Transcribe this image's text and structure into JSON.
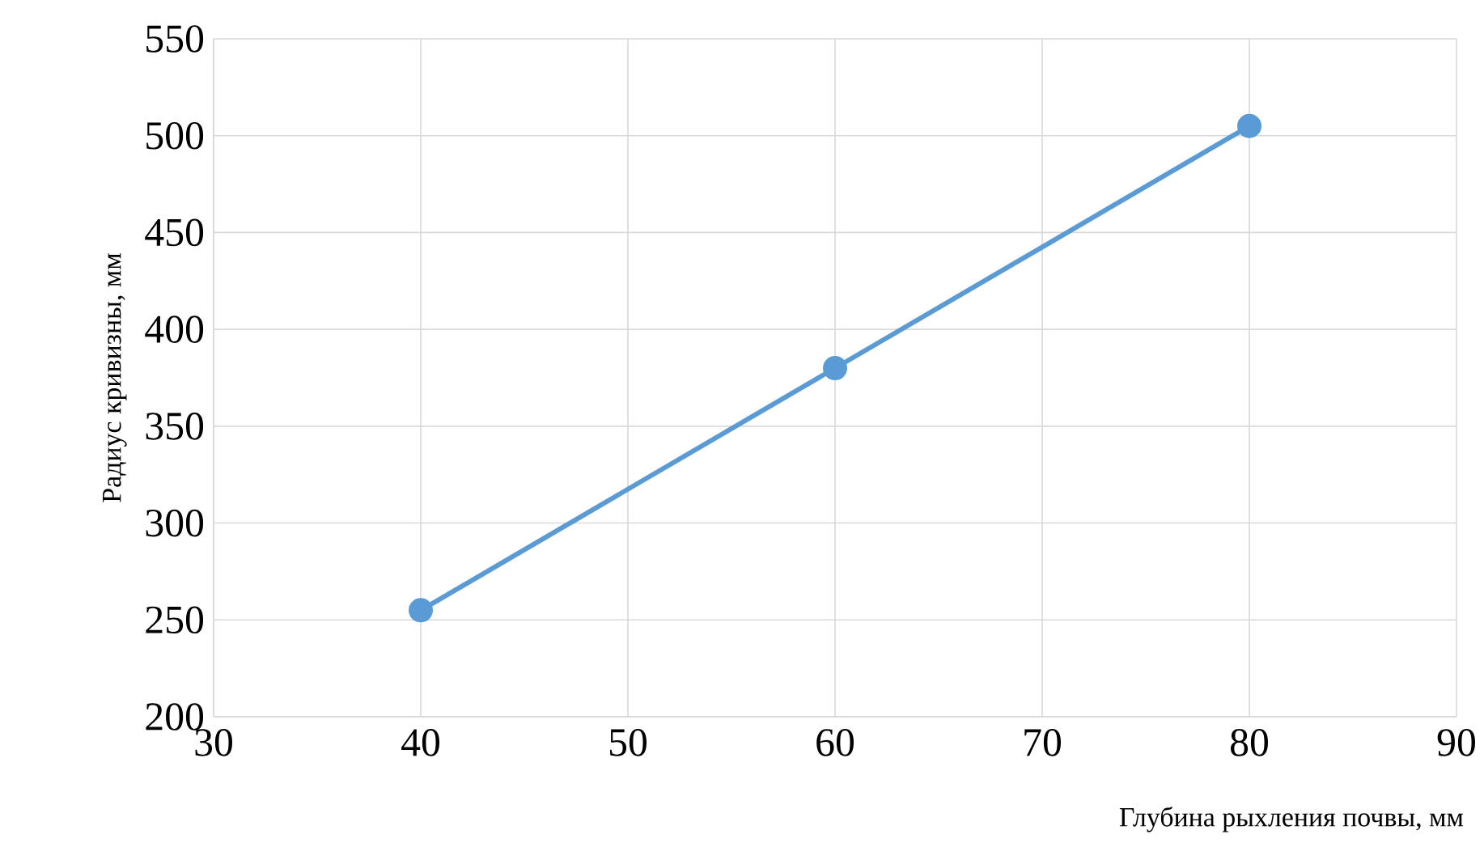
{
  "chart_data": {
    "type": "line",
    "xlabel": "Глубина рыхления почвы, мм",
    "ylabel": "Радиус кривизны, мм",
    "x": [
      40,
      60,
      80
    ],
    "series": [
      {
        "color": "#5b9bd5",
        "values": [
          255,
          380,
          505
        ]
      }
    ],
    "xlim": [
      30,
      90
    ],
    "xticks": [
      30,
      40,
      50,
      60,
      70,
      80,
      90
    ],
    "ylim": [
      200,
      550
    ],
    "yticks": [
      200,
      250,
      300,
      350,
      400,
      450,
      500,
      550
    ],
    "grid": true,
    "marker": "circle",
    "line_style": "solid"
  }
}
